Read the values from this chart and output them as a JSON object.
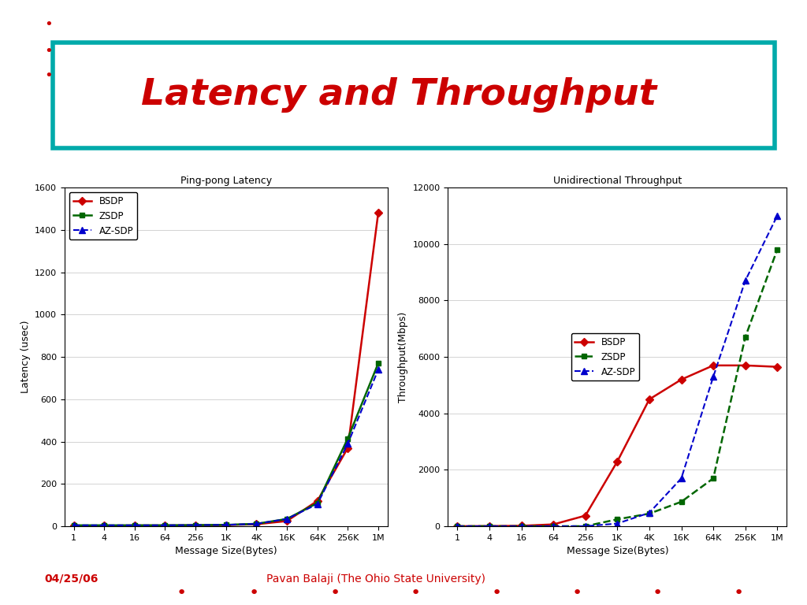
{
  "title": "Latency and Throughput",
  "title_color": "#cc0000",
  "title_fontsize": 34,
  "title_box_color": "#00aaaa",
  "purple_box_color": "#330099",
  "bullet_color": "#cc0000",
  "footer_date": "04/25/06",
  "footer_author": "Pavan Balaji (The Ohio State University)",
  "footer_color": "#cc0000",
  "footer_bar_color": "#330099",
  "footer_dot_color": "#cc0000",
  "x_labels": [
    "1",
    "4",
    "16",
    "64",
    "256",
    "1K",
    "4K",
    "16K",
    "64K",
    "256K",
    "1M"
  ],
  "latency_title": "Ping-pong Latency",
  "latency_ylabel": "Latency (usec)",
  "latency_xlabel": "Message Size(Bytes)",
  "latency_ylim": [
    0,
    1600
  ],
  "latency_yticks": [
    0,
    200,
    400,
    600,
    800,
    1000,
    1200,
    1400,
    1600
  ],
  "latency_bsdp": [
    3,
    3,
    4,
    4,
    5,
    6,
    10,
    25,
    120,
    370,
    1480
  ],
  "latency_zsdp": [
    5,
    5,
    5,
    5,
    6,
    7,
    12,
    35,
    110,
    415,
    770
  ],
  "latency_azsdp": [
    5,
    5,
    5,
    5,
    6,
    7,
    12,
    35,
    105,
    390,
    740
  ],
  "throughput_title": "Unidirectional Throughput",
  "throughput_ylabel": "Throughput(Mbps)",
  "throughput_xlabel": "Message Size(Bytes)",
  "throughput_ylim": [
    0,
    12000
  ],
  "throughput_yticks": [
    0,
    2000,
    4000,
    6000,
    8000,
    10000,
    12000
  ],
  "throughput_bsdp": [
    5,
    10,
    20,
    70,
    380,
    2300,
    4500,
    5200,
    5700,
    5700,
    5650
  ],
  "throughput_zsdp": [
    5,
    5,
    5,
    5,
    5,
    250,
    450,
    870,
    1700,
    6700,
    9800
  ],
  "throughput_azsdp": [
    5,
    5,
    5,
    5,
    5,
    100,
    480,
    1700,
    5300,
    8700,
    11000
  ],
  "bsdp_color": "#cc0000",
  "zsdp_color": "#006600",
  "azsdp_color": "#0000cc"
}
